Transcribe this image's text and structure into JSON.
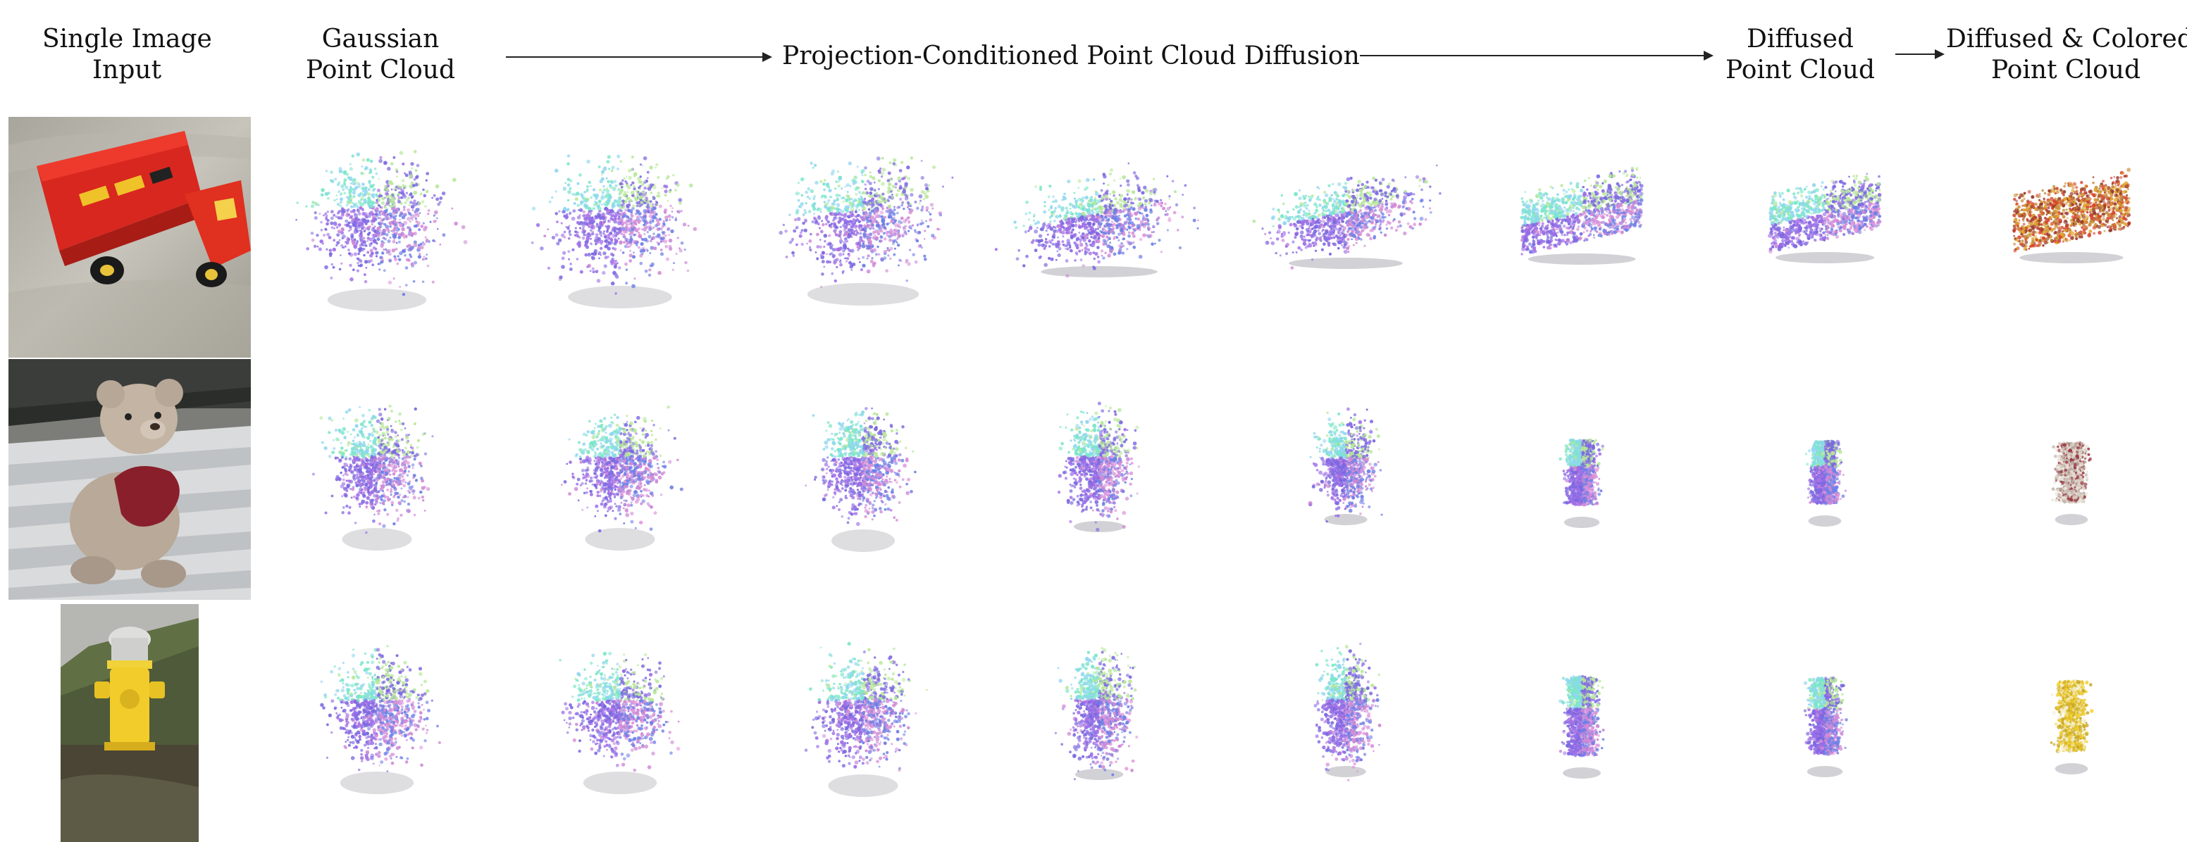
{
  "headers": {
    "input": [
      "Single Image",
      "Input"
    ],
    "gaussian": [
      "Gaussian",
      "Point Cloud"
    ],
    "process": "Projection-Conditioned Point Cloud Diffusion",
    "diffused": [
      "Diffused",
      "Point Cloud"
    ],
    "colored": [
      "Diffused & Colored",
      "Point Cloud"
    ]
  },
  "rows": [
    {
      "object": "toy-truck",
      "colored_palette": [
        "#d9442f",
        "#e0a22a",
        "#c98f3a",
        "#9a3b2c"
      ]
    },
    {
      "object": "teddy-bear",
      "colored_palette": [
        "#e9e4da",
        "#d8d0c2",
        "#b8a9a0",
        "#9a3a44"
      ]
    },
    {
      "object": "fire-hydrant",
      "colored_palette": [
        "#f2d23a",
        "#e6c12a",
        "#f4f0d8",
        "#c9a826"
      ]
    }
  ],
  "diffusion_palette": [
    "#7ae6c8",
    "#8fd6f0",
    "#b7e89a",
    "#7a68e0",
    "#a070e8",
    "#d08ad6",
    "#6f7fe6",
    "#e39ae0"
  ]
}
